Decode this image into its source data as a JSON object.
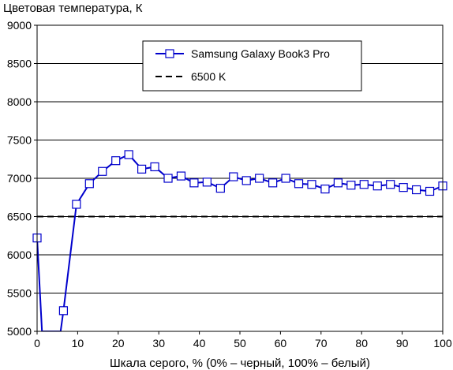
{
  "chart_data": {
    "type": "line",
    "ylabel": "Цветовая температура, К",
    "xlabel": "Шкала серого, % (0% – черный, 100% – белый)",
    "xlim": [
      0,
      100
    ],
    "ylim": [
      5000,
      9000
    ],
    "x_ticks": [
      0,
      10,
      20,
      30,
      40,
      50,
      60,
      70,
      80,
      90,
      100
    ],
    "y_ticks": [
      5000,
      5500,
      6000,
      6500,
      7000,
      7500,
      8000,
      8500,
      9000
    ],
    "grid": "horizontal",
    "legend_position": "top-right",
    "series": [
      {
        "name": "Samsung Galaxy Book3 Pro",
        "color": "#0000cc",
        "marker": "square",
        "x": [
          0,
          6.5,
          9.7,
          12.9,
          16.1,
          19.4,
          22.6,
          25.8,
          29.0,
          32.3,
          35.5,
          38.7,
          41.9,
          45.2,
          48.4,
          51.6,
          54.8,
          58.1,
          61.3,
          64.5,
          67.7,
          71.0,
          74.2,
          77.4,
          80.6,
          83.9,
          87.1,
          90.3,
          93.5,
          96.8,
          100
        ],
        "y": [
          6220,
          5270,
          6660,
          6930,
          7090,
          7230,
          7310,
          7120,
          7150,
          7000,
          7030,
          6940,
          6950,
          6870,
          7020,
          6970,
          7000,
          6940,
          7000,
          6930,
          6920,
          6860,
          6940,
          6910,
          6920,
          6900,
          6920,
          6880,
          6850,
          6830,
          6900
        ],
        "extra_line_points": [
          [
            1.2,
            5000
          ],
          [
            5.8,
            5000
          ]
        ]
      },
      {
        "name": "6500 K",
        "color": "#000000",
        "style": "dashed",
        "y_constant": 6500
      }
    ]
  }
}
